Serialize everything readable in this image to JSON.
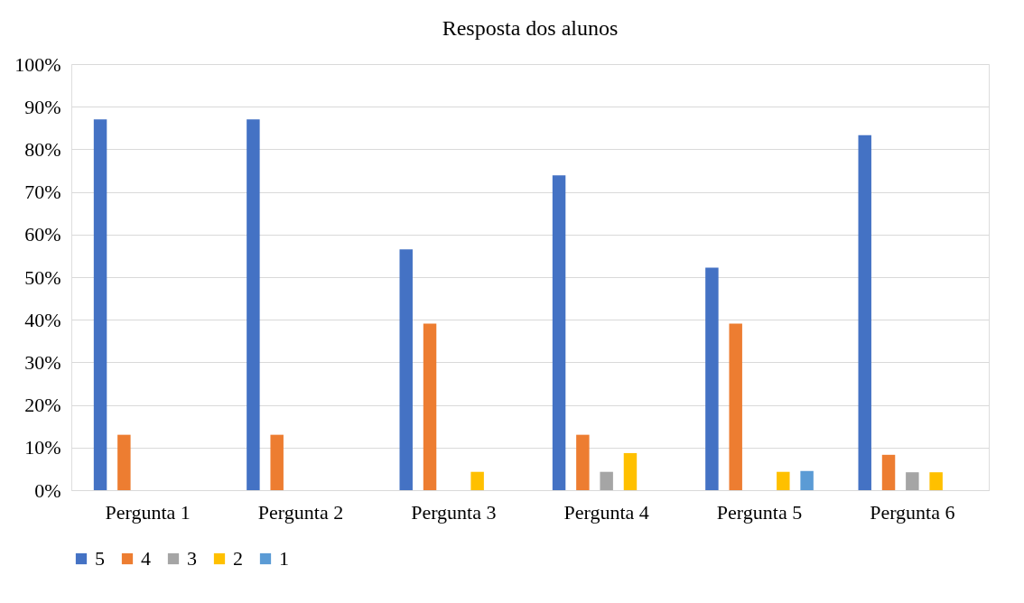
{
  "chart_data": {
    "type": "bar",
    "title": "Resposta dos alunos",
    "categories": [
      "Pergunta 1",
      "Pergunta 2",
      "Pergunta 3",
      "Pergunta 4",
      "Pergunta 5",
      "Pergunta 6"
    ],
    "series": [
      {
        "name": "5",
        "color": "#4472c4",
        "values": [
          87,
          87,
          56.5,
          73.9,
          52.2,
          83.3
        ]
      },
      {
        "name": "4",
        "color": "#ed7d31",
        "values": [
          13,
          13,
          39.1,
          13,
          39.1,
          8.3
        ]
      },
      {
        "name": "3",
        "color": "#a5a5a5",
        "values": [
          0,
          0,
          0,
          4.3,
          0,
          4.2
        ]
      },
      {
        "name": "2",
        "color": "#ffc000",
        "values": [
          0,
          0,
          4.3,
          8.7,
          4.3,
          4.2
        ]
      },
      {
        "name": "1",
        "color": "#5b9bd5",
        "values": [
          0,
          0,
          0,
          0,
          4.5,
          0
        ]
      }
    ],
    "ylim": [
      0,
      100
    ],
    "yticks": [
      {
        "value": 0,
        "label": "0%"
      },
      {
        "value": 10,
        "label": "10%"
      },
      {
        "value": 20,
        "label": "20%"
      },
      {
        "value": 30,
        "label": "30%"
      },
      {
        "value": 40,
        "label": "40%"
      },
      {
        "value": 50,
        "label": "50%"
      },
      {
        "value": 60,
        "label": "60%"
      },
      {
        "value": 70,
        "label": "70%"
      },
      {
        "value": 80,
        "label": "80%"
      },
      {
        "value": 90,
        "label": "90%"
      },
      {
        "value": 100,
        "label": "100%"
      }
    ],
    "grid": "y",
    "legend": "bottom"
  }
}
